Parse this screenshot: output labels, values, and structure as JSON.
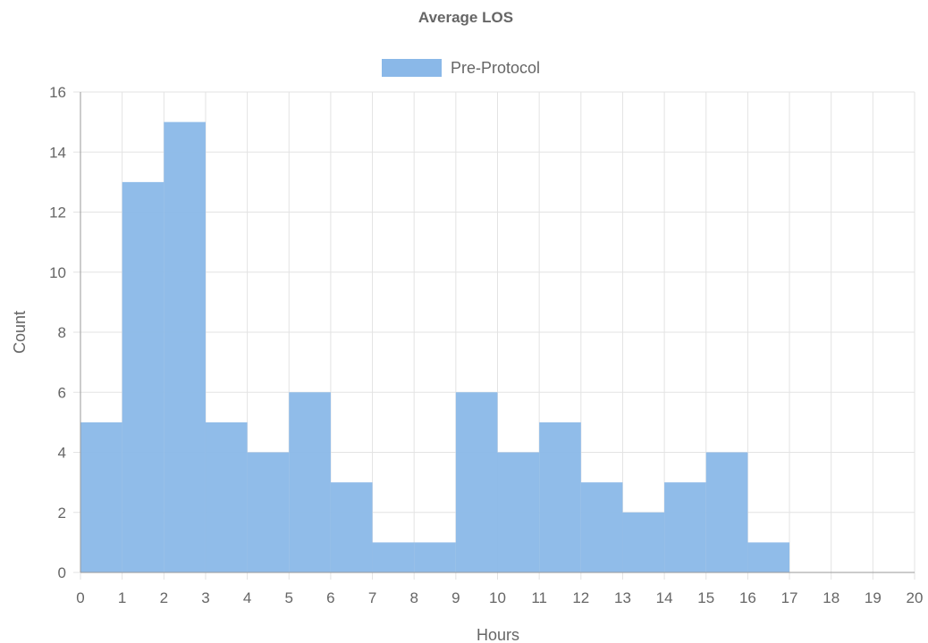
{
  "chart_data": {
    "type": "bar",
    "title": "Average LOS",
    "xlabel": "Hours",
    "ylabel": "Count",
    "x_ticks": [
      "0",
      "1",
      "2",
      "3",
      "4",
      "5",
      "6",
      "7",
      "8",
      "9",
      "10",
      "11",
      "12",
      "13",
      "14",
      "15",
      "16",
      "17",
      "18",
      "19",
      "20"
    ],
    "y_ticks": [
      "0",
      "2",
      "4",
      "6",
      "8",
      "10",
      "12",
      "14",
      "16"
    ],
    "xlim": [
      0,
      20
    ],
    "ylim": [
      0,
      16
    ],
    "grid": true,
    "legend_position": "top",
    "series": [
      {
        "name": "Pre-Protocol",
        "color": "#8ab8e8",
        "bins": [
          [
            0,
            1
          ],
          [
            1,
            2
          ],
          [
            2,
            3
          ],
          [
            3,
            4
          ],
          [
            4,
            5
          ],
          [
            5,
            6
          ],
          [
            6,
            7
          ],
          [
            7,
            8
          ],
          [
            8,
            9
          ],
          [
            9,
            10
          ],
          [
            10,
            11
          ],
          [
            11,
            12
          ],
          [
            12,
            13
          ],
          [
            13,
            14
          ],
          [
            14,
            15
          ],
          [
            15,
            16
          ],
          [
            16,
            17
          ]
        ],
        "values": [
          5,
          13,
          15,
          5,
          4,
          6,
          3,
          1,
          1,
          6,
          4,
          5,
          3,
          2,
          3,
          4,
          1
        ]
      }
    ]
  }
}
